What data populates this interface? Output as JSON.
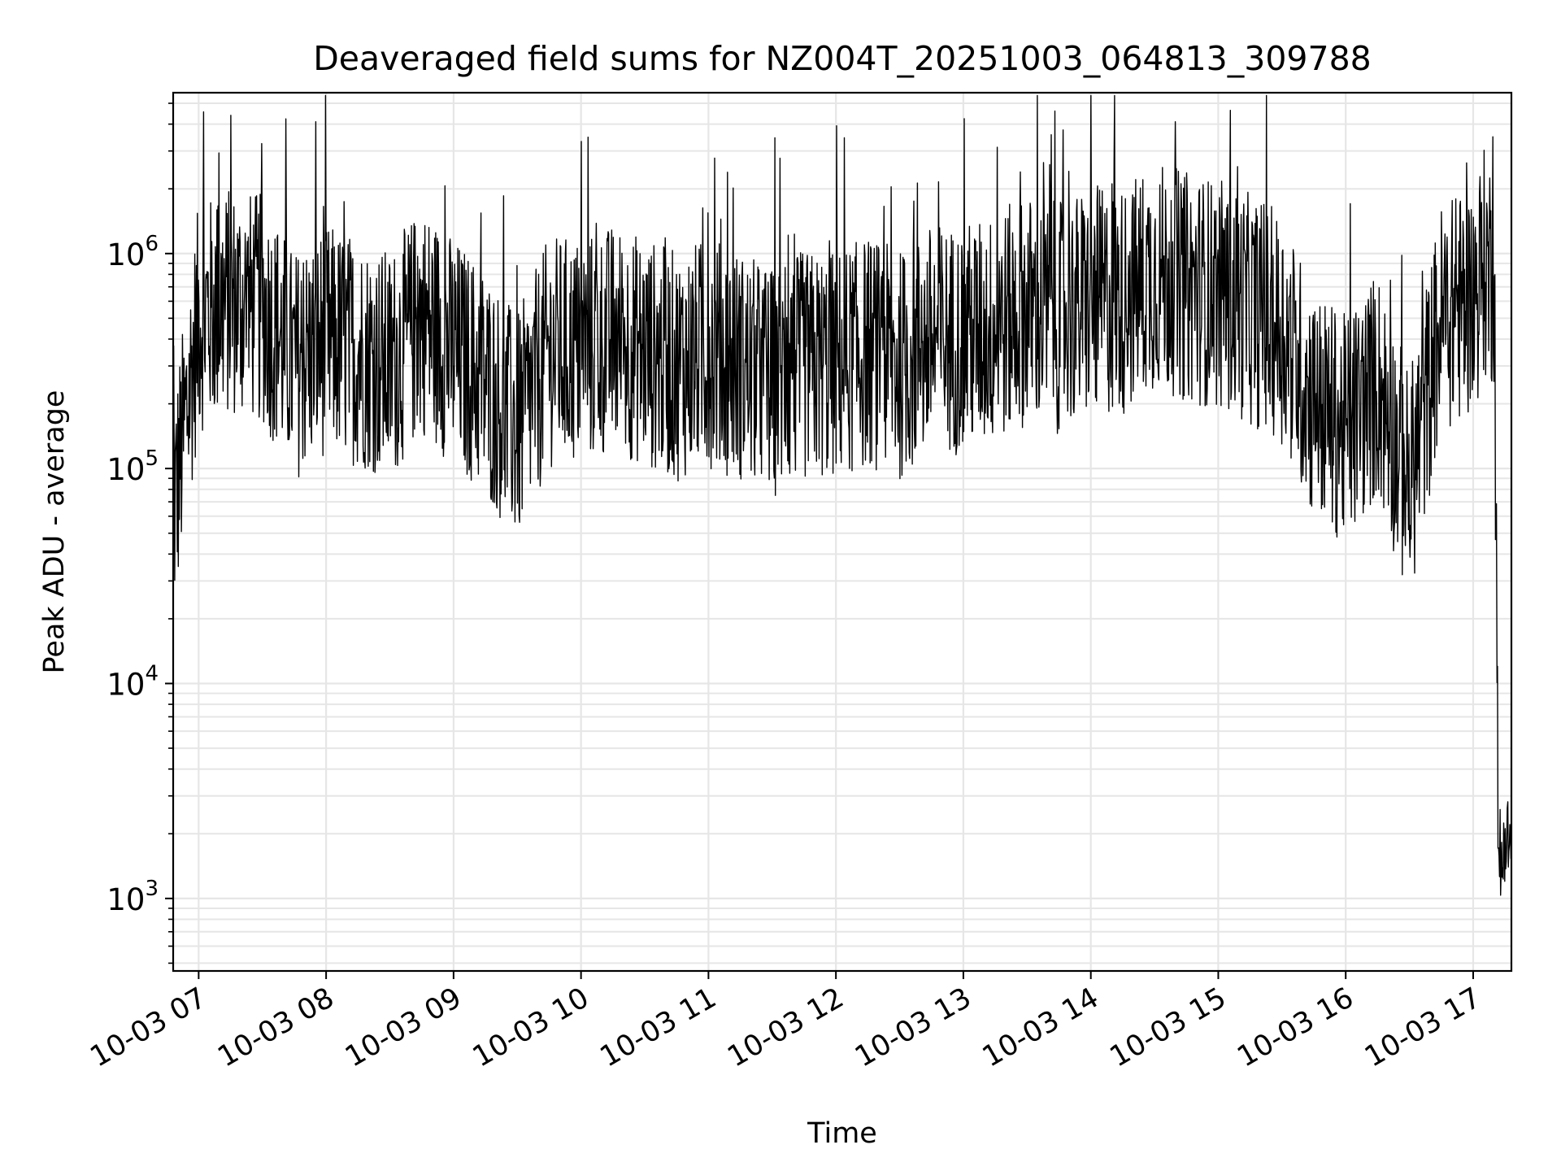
{
  "chart_data": {
    "type": "line",
    "title": "Deaveraged field sums for NZ004T_20251003_064813_309788",
    "xlabel": "Time",
    "ylabel": "Peak ADU - average",
    "yscale": "log",
    "ylim": [
      460,
      5600000
    ],
    "xlim": [
      "10-03 06:48",
      "10-03 17:18"
    ],
    "grid": true,
    "line_color": "#000000",
    "grid_color": "#e6e6e6",
    "x_ticks": [
      "10-03 07",
      "10-03 08",
      "10-03 09",
      "10-03 10",
      "10-03 11",
      "10-03 12",
      "10-03 13",
      "10-03 14",
      "10-03 15",
      "10-03 16",
      "10-03 17"
    ],
    "y_ticks": [
      {
        "base": "10",
        "exp": "3",
        "value": 1000
      },
      {
        "base": "10",
        "exp": "4",
        "value": 10000
      },
      {
        "base": "10",
        "exp": "5",
        "value": 100000
      },
      {
        "base": "10",
        "exp": "6",
        "value": 1000000
      }
    ],
    "series": [
      {
        "x": [
          "10-03 06:48",
          "10-03 07:00",
          "10-03 07:15",
          "10-03 07:30",
          "10-03 07:45",
          "10-03 08:00",
          "10-03 08:15",
          "10-03 08:30",
          "10-03 08:45",
          "10-03 09:00",
          "10-03 09:15",
          "10-03 09:30",
          "10-03 09:45",
          "10-03 10:00",
          "10-03 10:15",
          "10-03 10:30",
          "10-03 10:45",
          "10-03 11:00",
          "10-03 11:15",
          "10-03 11:30",
          "10-03 11:45",
          "10-03 12:00",
          "10-03 12:15",
          "10-03 12:30",
          "10-03 12:45",
          "10-03 13:00",
          "10-03 13:15",
          "10-03 13:30",
          "10-03 13:45",
          "10-03 14:00",
          "10-03 14:15",
          "10-03 14:30",
          "10-03 14:45",
          "10-03 15:00",
          "10-03 15:15",
          "10-03 15:30",
          "10-03 15:45",
          "10-03 16:00",
          "10-03 16:15",
          "10-03 16:30",
          "10-03 16:45",
          "10-03 17:00",
          "10-03 17:05",
          "10-03 17:10",
          "10-03 17:12",
          "10-03 17:15",
          "10-03 17:18"
        ],
        "y": [
          60000,
          500000,
          600000,
          550000,
          300000,
          400000,
          350000,
          300000,
          500000,
          350000,
          250000,
          150000,
          350000,
          350000,
          400000,
          350000,
          300000,
          350000,
          300000,
          250000,
          300000,
          300000,
          350000,
          300000,
          400000,
          400000,
          450000,
          550000,
          500000,
          600000,
          600000,
          800000,
          700000,
          650000,
          550000,
          450000,
          200000,
          150000,
          250000,
          80000,
          500000,
          600000,
          900000,
          800000,
          1000,
          2000,
          1800
        ]
      }
    ]
  }
}
